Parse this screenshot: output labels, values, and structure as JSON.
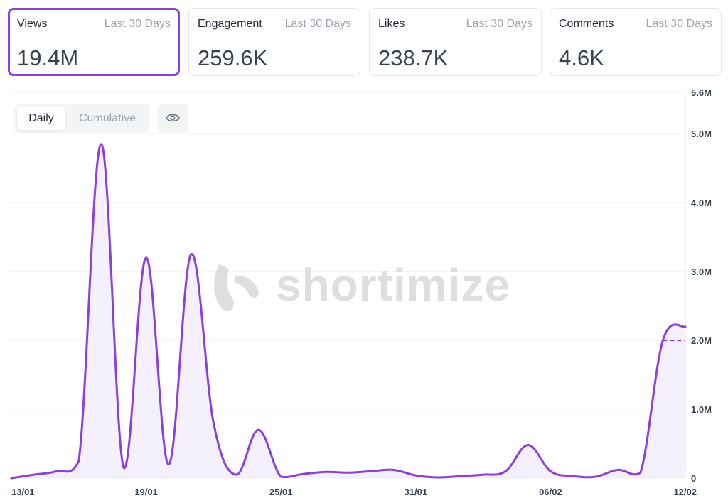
{
  "cards": [
    {
      "label": "Views",
      "period": "Last 30 Days",
      "value": "19.4M",
      "active": true
    },
    {
      "label": "Engagement",
      "period": "Last 30 Days",
      "value": "259.6K",
      "active": false
    },
    {
      "label": "Likes",
      "period": "Last 30 Days",
      "value": "238.7K",
      "active": false
    },
    {
      "label": "Comments",
      "period": "Last 30 Days",
      "value": "4.6K",
      "active": false
    }
  ],
  "toggle": {
    "daily": "Daily",
    "cumulative": "Cumulative",
    "selected": "Daily"
  },
  "visibility_icon": "eye-icon",
  "watermark": {
    "text": "shortimize"
  },
  "colors": {
    "line": "#8b3fe0",
    "fill": "#f3ecfc",
    "active_border": "#8b3fe0"
  },
  "chart_data": {
    "type": "area",
    "title": "",
    "xlabel": "",
    "ylabel": "",
    "x": [
      "13/01",
      "14/01",
      "15/01",
      "16/01",
      "17/01",
      "18/01",
      "19/01",
      "20/01",
      "21/01",
      "22/01",
      "23/01",
      "24/01",
      "25/01",
      "26/01",
      "27/01",
      "28/01",
      "29/01",
      "30/01",
      "31/01",
      "01/02",
      "02/02",
      "03/02",
      "04/02",
      "05/02",
      "06/02",
      "07/02",
      "08/02",
      "09/02",
      "10/02",
      "11/02",
      "12/02"
    ],
    "x_tick_labels": [
      "13/01",
      "19/01",
      "25/01",
      "31/01",
      "06/02",
      "12/02"
    ],
    "series": [
      {
        "values": [
          0,
          0.05,
          0.1,
          0.25,
          4.85,
          0.15,
          3.2,
          0.2,
          3.25,
          0.8,
          0.05,
          0.7,
          0.02,
          0.06,
          0.09,
          0.08,
          0.1,
          0.12,
          0.04,
          0.01,
          0.03,
          0.05,
          0.1,
          0.48,
          0.1,
          0.03,
          0.02,
          0.12,
          0.08,
          2.0,
          2.2
        ]
      }
    ],
    "projection": {
      "from": "11/02",
      "value": 2.0,
      "style": "dashed"
    },
    "y_tick_labels": [
      "0",
      "1.0M",
      "2.0M",
      "3.0M",
      "4.0M",
      "5.0M",
      "5.6M"
    ],
    "y_tick_values": [
      0,
      1.0,
      2.0,
      3.0,
      4.0,
      5.0,
      5.6
    ],
    "ylim": [
      0,
      5.6
    ],
    "y_unit": "M",
    "y_axis_side": "right",
    "grid": true
  }
}
